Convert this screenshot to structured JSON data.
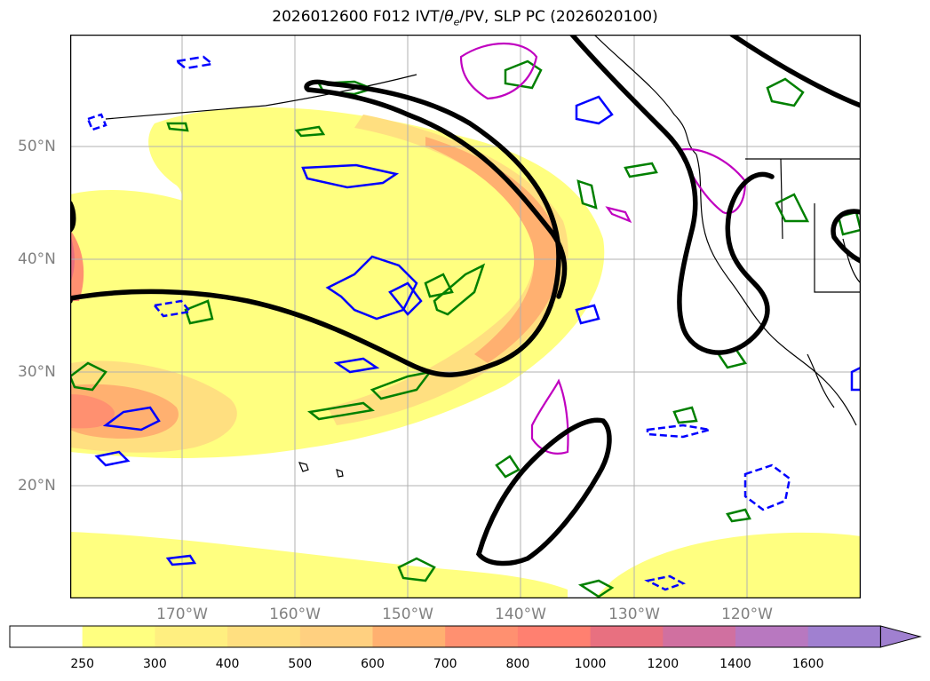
{
  "title_prefix": "2026012600 F012 IVT/",
  "title_theta": "θ",
  "title_sub": "e",
  "title_suffix": "/PV, SLP PC (2026020100)",
  "lat_labels": [
    "50°N",
    "40°N",
    "30°N",
    "20°N"
  ],
  "lon_labels": [
    "170°W",
    "160°W",
    "150°W",
    "140°W",
    "130°W",
    "120°W"
  ],
  "colorbar": {
    "levels": [
      "250",
      "300",
      "400",
      "500",
      "600",
      "700",
      "800",
      "1000",
      "1200",
      "1400",
      "1600"
    ],
    "colors": [
      "#ffffff",
      "#ffff80",
      "#ffef80",
      "#ffdf80",
      "#ffd080",
      "#ffb070",
      "#ff9070",
      "#ff8070",
      "#e87080",
      "#d070a0",
      "#b878c0",
      "#a080d0"
    ],
    "extend": "max"
  },
  "contour_colors": {
    "slp": "#000000",
    "theta_e": "#008000",
    "pv": "#0000ff",
    "pv_high": "#c000c0"
  }
}
